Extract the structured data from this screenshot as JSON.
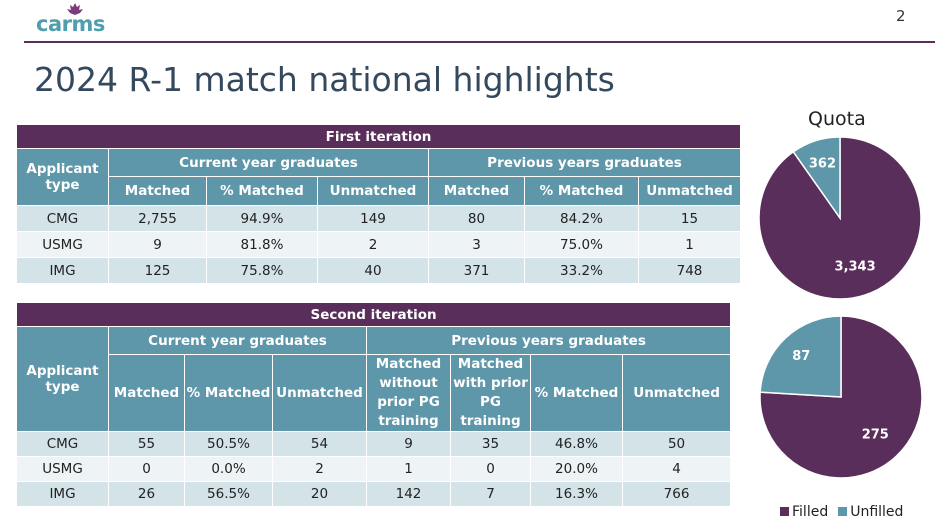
{
  "header": {
    "logo_text": "carms",
    "page_number": "2"
  },
  "title": "2024 R-1 match national highlights",
  "first": {
    "title": "First iteration",
    "applicant_type": "Applicant type",
    "group_current": "Current year graduates",
    "group_previous": "Previous years graduates",
    "col_matched": "Matched",
    "col_pct": "% Matched",
    "col_unmatched": "Unmatched",
    "rows": [
      {
        "type": "CMG",
        "c_matched": "2,755",
        "c_pct": "94.9%",
        "c_unmatched": "149",
        "p_matched": "80",
        "p_pct": "84.2%",
        "p_unmatched": "15"
      },
      {
        "type": "USMG",
        "c_matched": "9",
        "c_pct": "81.8%",
        "c_unmatched": "2",
        "p_matched": "3",
        "p_pct": "75.0%",
        "p_unmatched": "1"
      },
      {
        "type": "IMG",
        "c_matched": "125",
        "c_pct": "75.8%",
        "c_unmatched": "40",
        "p_matched": "371",
        "p_pct": "33.2%",
        "p_unmatched": "748"
      }
    ]
  },
  "second": {
    "title": "Second iteration",
    "applicant_type": "Applicant type",
    "group_current": "Current year graduates",
    "group_previous": "Previous years graduates",
    "col_matched": "Matched",
    "col_pct": "% Matched",
    "col_unmatched": "Unmatched",
    "col_without": "Matched without prior PG training",
    "col_with": "Matched with prior PG training",
    "rows": [
      {
        "type": "CMG",
        "c_matched": "55",
        "c_pct": "50.5%",
        "c_unmatched": "54",
        "p_without": "9",
        "p_with": "35",
        "p_pct": "46.8%",
        "p_unmatched": "50"
      },
      {
        "type": "USMG",
        "c_matched": "0",
        "c_pct": "0.0%",
        "c_unmatched": "2",
        "p_without": "1",
        "p_with": "0",
        "p_pct": "20.0%",
        "p_unmatched": "4"
      },
      {
        "type": "IMG",
        "c_matched": "26",
        "c_pct": "56.5%",
        "c_unmatched": "20",
        "p_without": "142",
        "p_with": "7",
        "p_pct": "16.3%",
        "p_unmatched": "766"
      }
    ]
  },
  "quota": {
    "title": "Quota",
    "legend_filled": "Filled",
    "legend_unfilled": "Unfilled",
    "colors": {
      "filled": "#5a2e5b",
      "unfilled": "#5e97aa"
    }
  },
  "chart_data": [
    {
      "type": "pie",
      "title": "Quota (first iteration)",
      "categories": [
        "Filled",
        "Unfilled"
      ],
      "values": [
        3343,
        362
      ],
      "labels": [
        "3,343",
        "362"
      ]
    },
    {
      "type": "pie",
      "title": "Quota (second iteration)",
      "categories": [
        "Filled",
        "Unfilled"
      ],
      "values": [
        275,
        87
      ],
      "labels": [
        "275",
        "87"
      ]
    }
  ]
}
